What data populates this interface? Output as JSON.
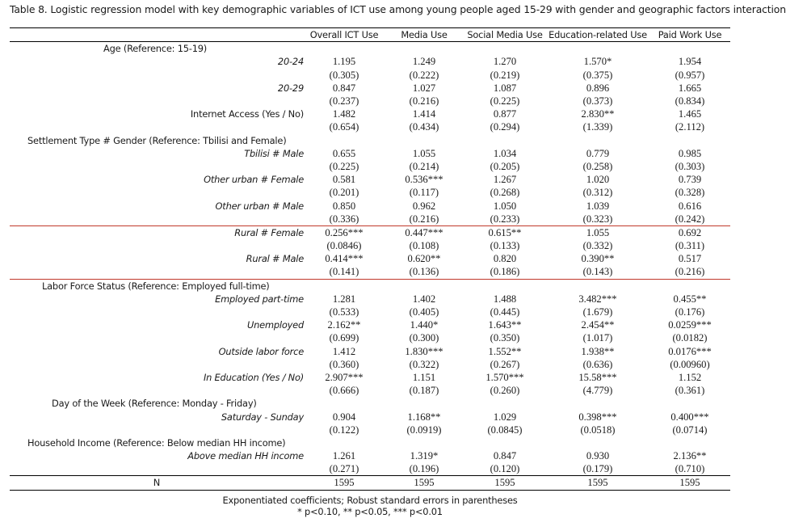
{
  "caption": "Table 8. Logistic regression model with key demographic variables of ICT use among young people aged 15-29 with gender and geographic factors interaction",
  "columns": [
    "Overall ICT Use",
    "Media Use",
    "Social Media Use",
    "Education-related Use",
    "Paid Work Use"
  ],
  "rows": [
    {
      "kind": "section",
      "label": "Age (Reference: 15-19)",
      "indent": 116
    },
    {
      "kind": "var",
      "label": "20-24",
      "values": [
        "1.195",
        "1.249",
        "1.270",
        "1.570*",
        "1.954"
      ],
      "se": [
        "(0.305)",
        "(0.222)",
        "(0.219)",
        "(0.375)",
        "(0.957)"
      ]
    },
    {
      "kind": "var",
      "label": "20-29",
      "values": [
        "0.847",
        "1.027",
        "1.087",
        "0.896",
        "1.665"
      ],
      "se": [
        "(0.237)",
        "(0.216)",
        "(0.225)",
        "(0.373)",
        "(0.834)"
      ]
    },
    {
      "kind": "plain",
      "label": "Internet Access (Yes / No)",
      "values": [
        "1.482",
        "1.414",
        "0.877",
        "2.830**",
        "1.465"
      ],
      "se": [
        "(0.654)",
        "(0.434)",
        "(0.294)",
        "(1.339)",
        "(2.112)"
      ]
    },
    {
      "kind": "section",
      "label": "Settlement Type # Gender (Reference: Tbilisi and Female)",
      "indent": 22
    },
    {
      "kind": "var",
      "label": "Tbilisi # Male",
      "values": [
        "0.655",
        "1.055",
        "1.034",
        "0.779",
        "0.985"
      ],
      "se": [
        "(0.225)",
        "(0.214)",
        "(0.205)",
        "(0.258)",
        "(0.303)"
      ]
    },
    {
      "kind": "var",
      "label": "Other urban # Female",
      "values": [
        "0.581",
        "0.536***",
        "1.267",
        "1.020",
        "0.739"
      ],
      "se": [
        "(0.201)",
        "(0.117)",
        "(0.268)",
        "(0.312)",
        "(0.328)"
      ]
    },
    {
      "kind": "var",
      "label": "Other urban # Male",
      "values": [
        "0.850",
        "0.962",
        "1.050",
        "1.039",
        "0.616"
      ],
      "se": [
        "(0.336)",
        "(0.216)",
        "(0.233)",
        "(0.323)",
        "(0.242)"
      ]
    },
    {
      "kind": "var",
      "label": "Rural # Female",
      "red_top": true,
      "values": [
        "0.256***",
        "0.447***",
        "0.615**",
        "1.055",
        "0.692"
      ],
      "se": [
        "(0.0846)",
        "(0.108)",
        "(0.133)",
        "(0.332)",
        "(0.311)"
      ]
    },
    {
      "kind": "var",
      "label": "Rural # Male",
      "values": [
        "0.414***",
        "0.620**",
        "0.820",
        "0.390**",
        "0.517"
      ],
      "se": [
        "(0.141)",
        "(0.136)",
        "(0.186)",
        "(0.143)",
        "(0.216)"
      ]
    },
    {
      "kind": "section",
      "label": "Labor Force Status (Reference: Employed full-time)",
      "indent": 40,
      "red_top": true
    },
    {
      "kind": "var",
      "label": "Employed part-time",
      "values": [
        "1.281",
        "1.402",
        "1.488",
        "3.482***",
        "0.455**"
      ],
      "se": [
        "(0.533)",
        "(0.405)",
        "(0.445)",
        "(1.679)",
        "(0.176)"
      ]
    },
    {
      "kind": "var",
      "label": "Unemployed",
      "values": [
        "2.162**",
        "1.440*",
        "1.643**",
        "2.454**",
        "0.0259***"
      ],
      "se": [
        "(0.699)",
        "(0.300)",
        "(0.350)",
        "(1.017)",
        "(0.0182)"
      ]
    },
    {
      "kind": "var",
      "label": "Outside labor force",
      "values": [
        "1.412",
        "1.830***",
        "1.552**",
        "1.938**",
        "0.0176***"
      ],
      "se": [
        "(0.360)",
        "(0.322)",
        "(0.267)",
        "(0.636)",
        "(0.00960)"
      ]
    },
    {
      "kind": "var",
      "label": "In Education (Yes / No)",
      "values": [
        "2.907***",
        "1.151",
        "1.570***",
        "15.58***",
        "1.152"
      ],
      "se": [
        "(0.666)",
        "(0.187)",
        "(0.260)",
        "(4.779)",
        "(0.361)"
      ]
    },
    {
      "kind": "section",
      "label": "Day of the Week (Reference: Monday - Friday)",
      "indent": 52
    },
    {
      "kind": "var",
      "label": "Saturday - Sunday",
      "values": [
        "0.904",
        "1.168**",
        "1.029",
        "0.398***",
        "0.400***"
      ],
      "se": [
        "(0.122)",
        "(0.0919)",
        "(0.0845)",
        "(0.0518)",
        "(0.0714)"
      ]
    },
    {
      "kind": "section",
      "label": "Household Income (Reference: Below median HH income)",
      "indent": 22
    },
    {
      "kind": "var",
      "label": "Above median HH income",
      "values": [
        "1.261",
        "1.319*",
        "0.847",
        "0.930",
        "2.136**"
      ],
      "se": [
        "(0.271)",
        "(0.196)",
        "(0.120)",
        "(0.179)",
        "(0.710)"
      ]
    }
  ],
  "n_row": {
    "label": "N",
    "values": [
      "1595",
      "1595",
      "1595",
      "1595",
      "1595"
    ]
  },
  "notes": [
    "Exponentiated coefficients; Robust standard errors in parentheses",
    "* p<0.10, ** p<0.05, *** p<0.01"
  ]
}
